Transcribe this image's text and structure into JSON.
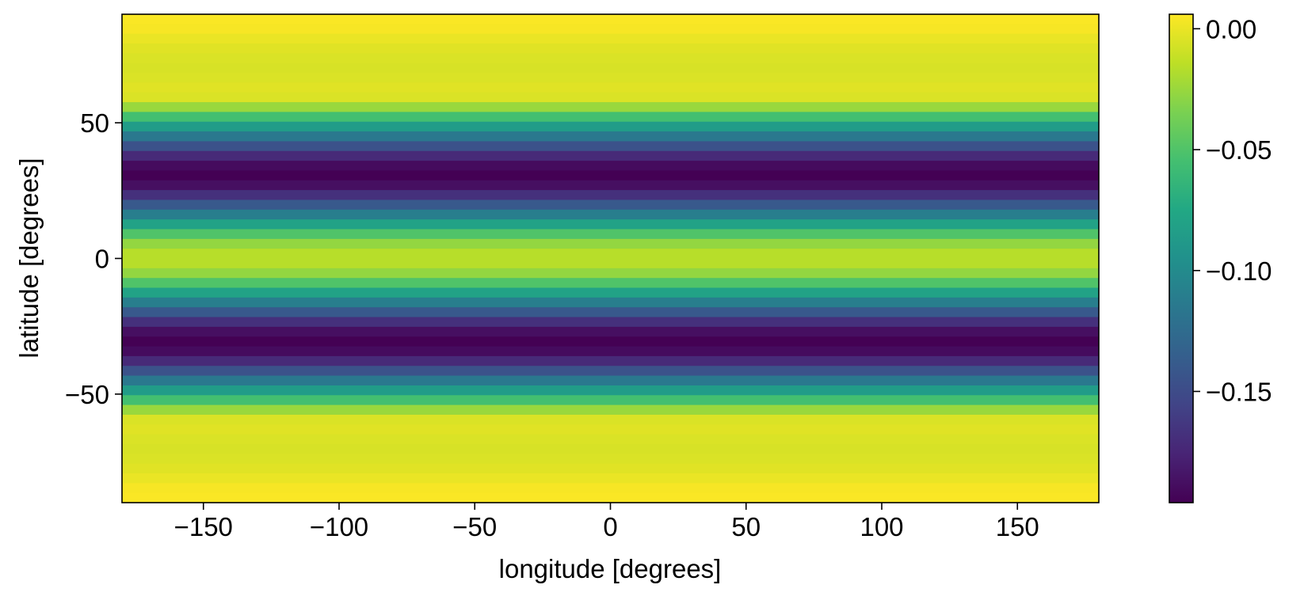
{
  "chart_data": {
    "type": "heatmap",
    "title": "",
    "xlabel": "longitude [degrees]",
    "ylabel": "latitude [degrees]",
    "xlim": [
      -180,
      180
    ],
    "ylim": [
      -90,
      90
    ],
    "x_ticks": [
      -150,
      -100,
      -50,
      0,
      50,
      100,
      150
    ],
    "x_tick_labels": [
      "−150",
      "−100",
      "−50",
      "0",
      "50",
      "100",
      "150"
    ],
    "y_ticks": [
      50,
      0,
      -50
    ],
    "y_tick_labels": [
      "50",
      "0",
      "−50"
    ],
    "latitude_step": 3.6,
    "value_varies_with": "latitude only (constant along longitude)",
    "colormap": "viridis",
    "colorbar": {
      "vmin": -0.196,
      "vmax": 0.006,
      "ticks": [
        0.0,
        -0.05,
        -0.1,
        -0.15
      ],
      "tick_labels": [
        "0.00",
        "−0.05",
        "−0.10",
        "−0.15"
      ]
    },
    "bands": [
      {
        "lat_top": 90.0,
        "lat_bottom": 86.4,
        "value": 0.005
      },
      {
        "lat_top": 86.4,
        "lat_bottom": 82.8,
        "value": 0.004
      },
      {
        "lat_top": 82.8,
        "lat_bottom": 79.2,
        "value": 0.0
      },
      {
        "lat_top": 79.2,
        "lat_bottom": 75.6,
        "value": -0.003
      },
      {
        "lat_top": 75.6,
        "lat_bottom": 72.0,
        "value": -0.005
      },
      {
        "lat_top": 72.0,
        "lat_bottom": 68.4,
        "value": -0.006
      },
      {
        "lat_top": 68.4,
        "lat_bottom": 64.8,
        "value": -0.005
      },
      {
        "lat_top": 64.8,
        "lat_bottom": 61.2,
        "value": -0.003
      },
      {
        "lat_top": 61.2,
        "lat_bottom": 57.6,
        "value": -0.005
      },
      {
        "lat_top": 57.6,
        "lat_bottom": 54.0,
        "value": -0.025
      },
      {
        "lat_top": 54.0,
        "lat_bottom": 50.4,
        "value": -0.055
      },
      {
        "lat_top": 50.4,
        "lat_bottom": 46.8,
        "value": -0.085
      },
      {
        "lat_top": 46.8,
        "lat_bottom": 43.2,
        "value": -0.115
      },
      {
        "lat_top": 43.2,
        "lat_bottom": 39.6,
        "value": -0.145
      },
      {
        "lat_top": 39.6,
        "lat_bottom": 36.0,
        "value": -0.172
      },
      {
        "lat_top": 36.0,
        "lat_bottom": 32.4,
        "value": -0.19
      },
      {
        "lat_top": 32.4,
        "lat_bottom": 28.8,
        "value": -0.196
      },
      {
        "lat_top": 28.8,
        "lat_bottom": 25.2,
        "value": -0.188
      },
      {
        "lat_top": 25.2,
        "lat_bottom": 21.6,
        "value": -0.168
      },
      {
        "lat_top": 21.6,
        "lat_bottom": 18.0,
        "value": -0.14
      },
      {
        "lat_top": 18.0,
        "lat_bottom": 14.4,
        "value": -0.11
      },
      {
        "lat_top": 14.4,
        "lat_bottom": 10.8,
        "value": -0.08
      },
      {
        "lat_top": 10.8,
        "lat_bottom": 7.2,
        "value": -0.05
      },
      {
        "lat_top": 7.2,
        "lat_bottom": 3.6,
        "value": -0.027
      },
      {
        "lat_top": 3.6,
        "lat_bottom": 0.0,
        "value": -0.016
      },
      {
        "lat_top": 0.0,
        "lat_bottom": -3.6,
        "value": -0.016
      },
      {
        "lat_top": -3.6,
        "lat_bottom": -7.2,
        "value": -0.027
      },
      {
        "lat_top": -7.2,
        "lat_bottom": -10.8,
        "value": -0.05
      },
      {
        "lat_top": -10.8,
        "lat_bottom": -14.4,
        "value": -0.08
      },
      {
        "lat_top": -14.4,
        "lat_bottom": -18.0,
        "value": -0.11
      },
      {
        "lat_top": -18.0,
        "lat_bottom": -21.6,
        "value": -0.14
      },
      {
        "lat_top": -21.6,
        "lat_bottom": -25.2,
        "value": -0.168
      },
      {
        "lat_top": -25.2,
        "lat_bottom": -28.8,
        "value": -0.188
      },
      {
        "lat_top": -28.8,
        "lat_bottom": -32.4,
        "value": -0.196
      },
      {
        "lat_top": -32.4,
        "lat_bottom": -36.0,
        "value": -0.19
      },
      {
        "lat_top": -36.0,
        "lat_bottom": -39.6,
        "value": -0.172
      },
      {
        "lat_top": -39.6,
        "lat_bottom": -43.2,
        "value": -0.145
      },
      {
        "lat_top": -43.2,
        "lat_bottom": -46.8,
        "value": -0.115
      },
      {
        "lat_top": -46.8,
        "lat_bottom": -50.4,
        "value": -0.085
      },
      {
        "lat_top": -50.4,
        "lat_bottom": -54.0,
        "value": -0.055
      },
      {
        "lat_top": -54.0,
        "lat_bottom": -57.6,
        "value": -0.025
      },
      {
        "lat_top": -57.6,
        "lat_bottom": -61.2,
        "value": -0.005
      },
      {
        "lat_top": -61.2,
        "lat_bottom": -64.8,
        "value": -0.003
      },
      {
        "lat_top": -64.8,
        "lat_bottom": -68.4,
        "value": -0.005
      },
      {
        "lat_top": -68.4,
        "lat_bottom": -72.0,
        "value": -0.006
      },
      {
        "lat_top": -72.0,
        "lat_bottom": -75.6,
        "value": -0.005
      },
      {
        "lat_top": -75.6,
        "lat_bottom": -79.2,
        "value": -0.003
      },
      {
        "lat_top": -79.2,
        "lat_bottom": -82.8,
        "value": 0.0
      },
      {
        "lat_top": -82.8,
        "lat_bottom": -86.4,
        "value": 0.004
      },
      {
        "lat_top": -86.4,
        "lat_bottom": -90.0,
        "value": 0.005
      }
    ]
  }
}
